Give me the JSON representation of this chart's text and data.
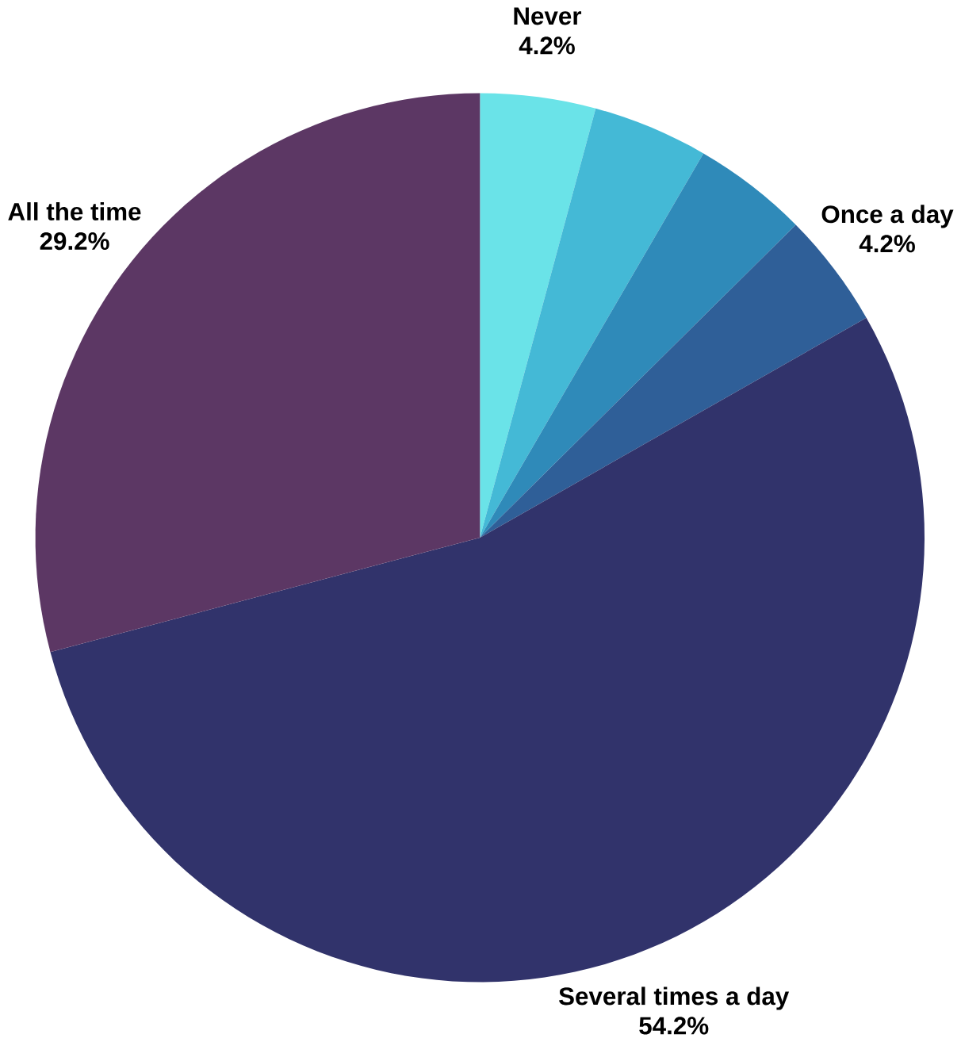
{
  "chart_data": {
    "type": "pie",
    "categories": [
      "Never",
      null,
      null,
      "Once a day",
      "Several times a day",
      "All the time"
    ],
    "values": [
      4.2,
      4.2,
      4.2,
      4.2,
      54.2,
      29.2
    ],
    "colors": [
      "#6ae3e8",
      "#44b9d6",
      "#2f8ab9",
      "#2f5f98",
      "#31336b",
      "#5c3764"
    ],
    "value_labels": [
      "4.2%",
      null,
      null,
      "4.2%",
      "54.2%",
      "29.2%"
    ]
  }
}
